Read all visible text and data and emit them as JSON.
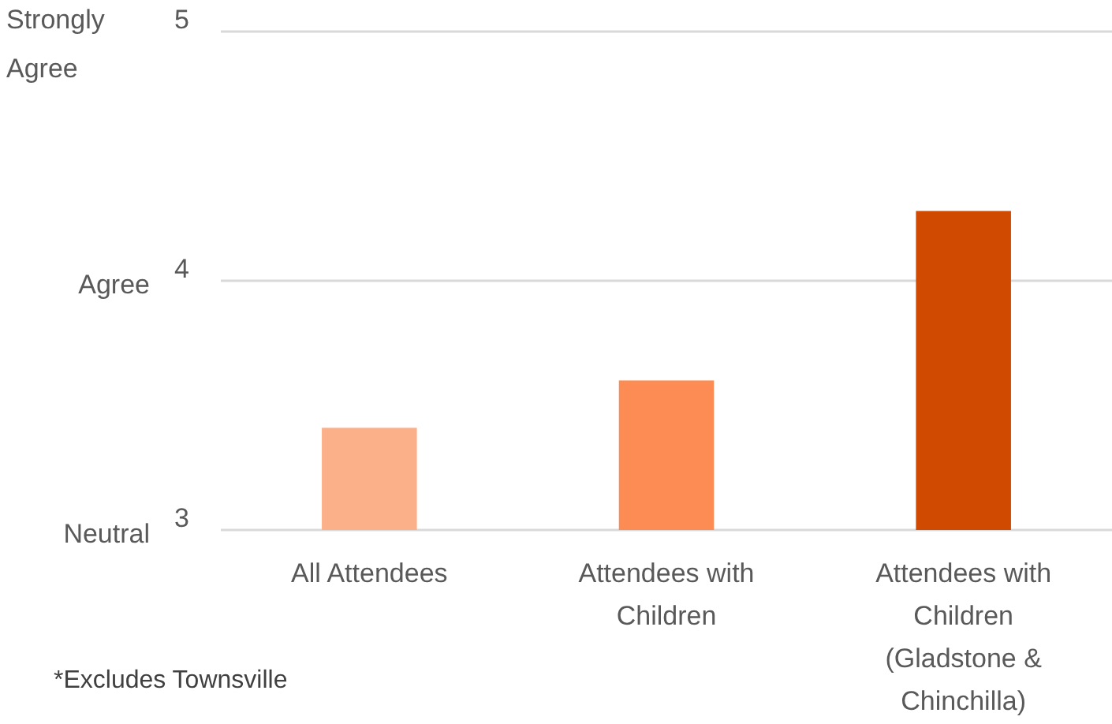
{
  "chart_data": {
    "type": "bar",
    "categories": [
      "All Attendees",
      "Attendees with Children",
      "Attendees with Children (Gladstone & Chinchilla)"
    ],
    "values": [
      3.41,
      3.6,
      4.28
    ],
    "colors": [
      "#fcb08a",
      "#fd8c54",
      "#d04a02"
    ],
    "ylim": [
      3,
      5
    ],
    "yticks": [
      3,
      4,
      5
    ],
    "grid": "y",
    "annotations": [
      "Strongly Agree",
      "Agree",
      "Neutral",
      "*Excludes Townsville"
    ]
  }
}
